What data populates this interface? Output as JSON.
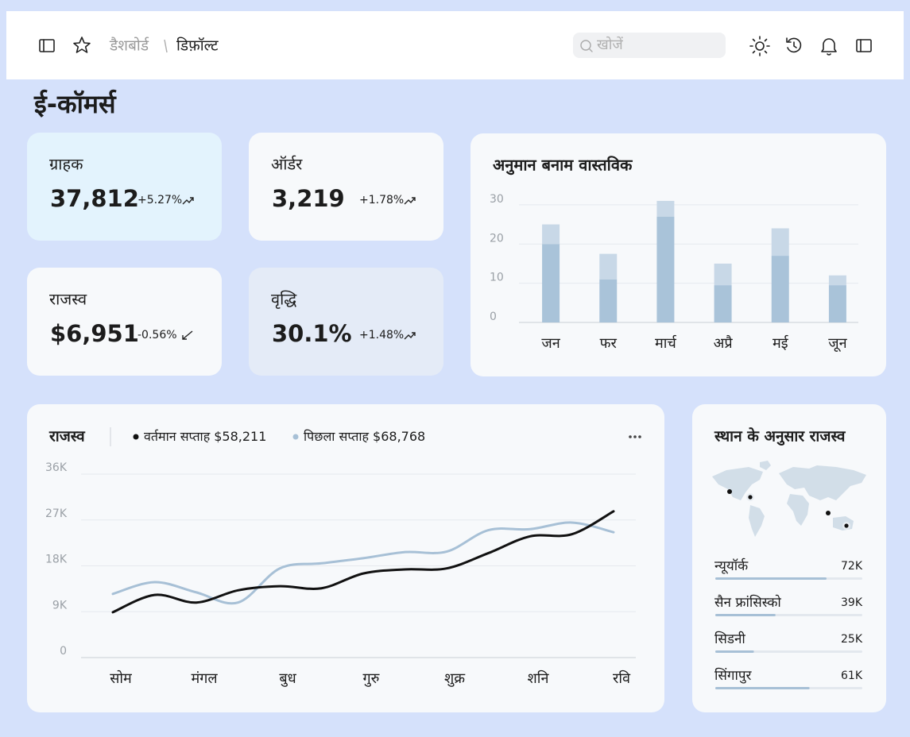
{
  "header": {
    "breadcrumb": [
      "डैशबोर्ड",
      "डिफ़ॉल्ट"
    ],
    "search_placeholder": "खोजें"
  },
  "page_title": "ई-कॉमर्स",
  "kpis": [
    {
      "label": "ग्राहक",
      "value": "37,812",
      "change": "+5.27%",
      "trend": "up"
    },
    {
      "label": "ऑर्डर",
      "value": "3,219",
      "change": "+1.78%",
      "trend": "up"
    },
    {
      "label": "राजस्व",
      "value": "$6,951",
      "change": "-0.56%",
      "trend": "down"
    },
    {
      "label": "वृद्धि",
      "value": "30.1%",
      "change": "+1.48%",
      "trend": "up"
    }
  ],
  "chart_data": [
    {
      "type": "bar",
      "stacked": true,
      "title": "अनुमान बनाम वास्तविक",
      "categories": [
        "जन",
        "फर",
        "मार्च",
        "अप्रै",
        "मई",
        "जून"
      ],
      "series": [
        {
          "color": "#a9c3d9",
          "values": [
            20,
            11,
            27,
            9.5,
            17,
            9.5
          ]
        },
        {
          "color": "#c8d8e7",
          "values": [
            5,
            6.5,
            4,
            5.5,
            7,
            2.5
          ]
        }
      ],
      "ylim": [
        0,
        32
      ],
      "yticks": [
        0,
        10,
        20,
        30
      ],
      "grid": true
    },
    {
      "type": "line",
      "smooth": true,
      "title": "राजस्व",
      "categories": [
        "सोम",
        null,
        "मंगल",
        null,
        "बुध",
        null,
        "गुरु",
        null,
        "शुक्र",
        null,
        "शनि",
        null,
        "रवि"
      ],
      "series": [
        {
          "name": "वर्तमान सप्ताह",
          "total_label": "$58,211",
          "color": "#111111",
          "values": [
            8900,
            12300,
            10800,
            13200,
            14000,
            13600,
            16500,
            17300,
            17500,
            20500,
            23800,
            24200,
            28700
          ]
        },
        {
          "name": "पिछला सप्ताह",
          "total_label": "$68,768",
          "color": "#a7c0d6",
          "values": [
            12500,
            14800,
            12800,
            10800,
            17500,
            18500,
            19500,
            20700,
            20800,
            25000,
            25200,
            26500,
            24600
          ]
        }
      ],
      "ylim": [
        0,
        36000
      ],
      "yticks": [
        0,
        {
          "value": 9000,
          "label": "9K"
        },
        {
          "value": 18000,
          "label": "18K"
        },
        {
          "value": 27000,
          "label": "27K"
        },
        {
          "value": 36000,
          "label": "36K"
        }
      ],
      "grid": true
    }
  ],
  "locations": {
    "title": "स्थान के अनुसार राजस्व",
    "items": [
      {
        "name": "न्यूयॉर्क",
        "value": 72000,
        "value_label": "72K"
      },
      {
        "name": "सैन फ्रांसिस्को",
        "value": 39000,
        "value_label": "39K"
      },
      {
        "name": "सिडनी",
        "value": 25000,
        "value_label": "25K"
      },
      {
        "name": "सिंगापुर",
        "value": 61000,
        "value_label": "61K"
      }
    ]
  }
}
